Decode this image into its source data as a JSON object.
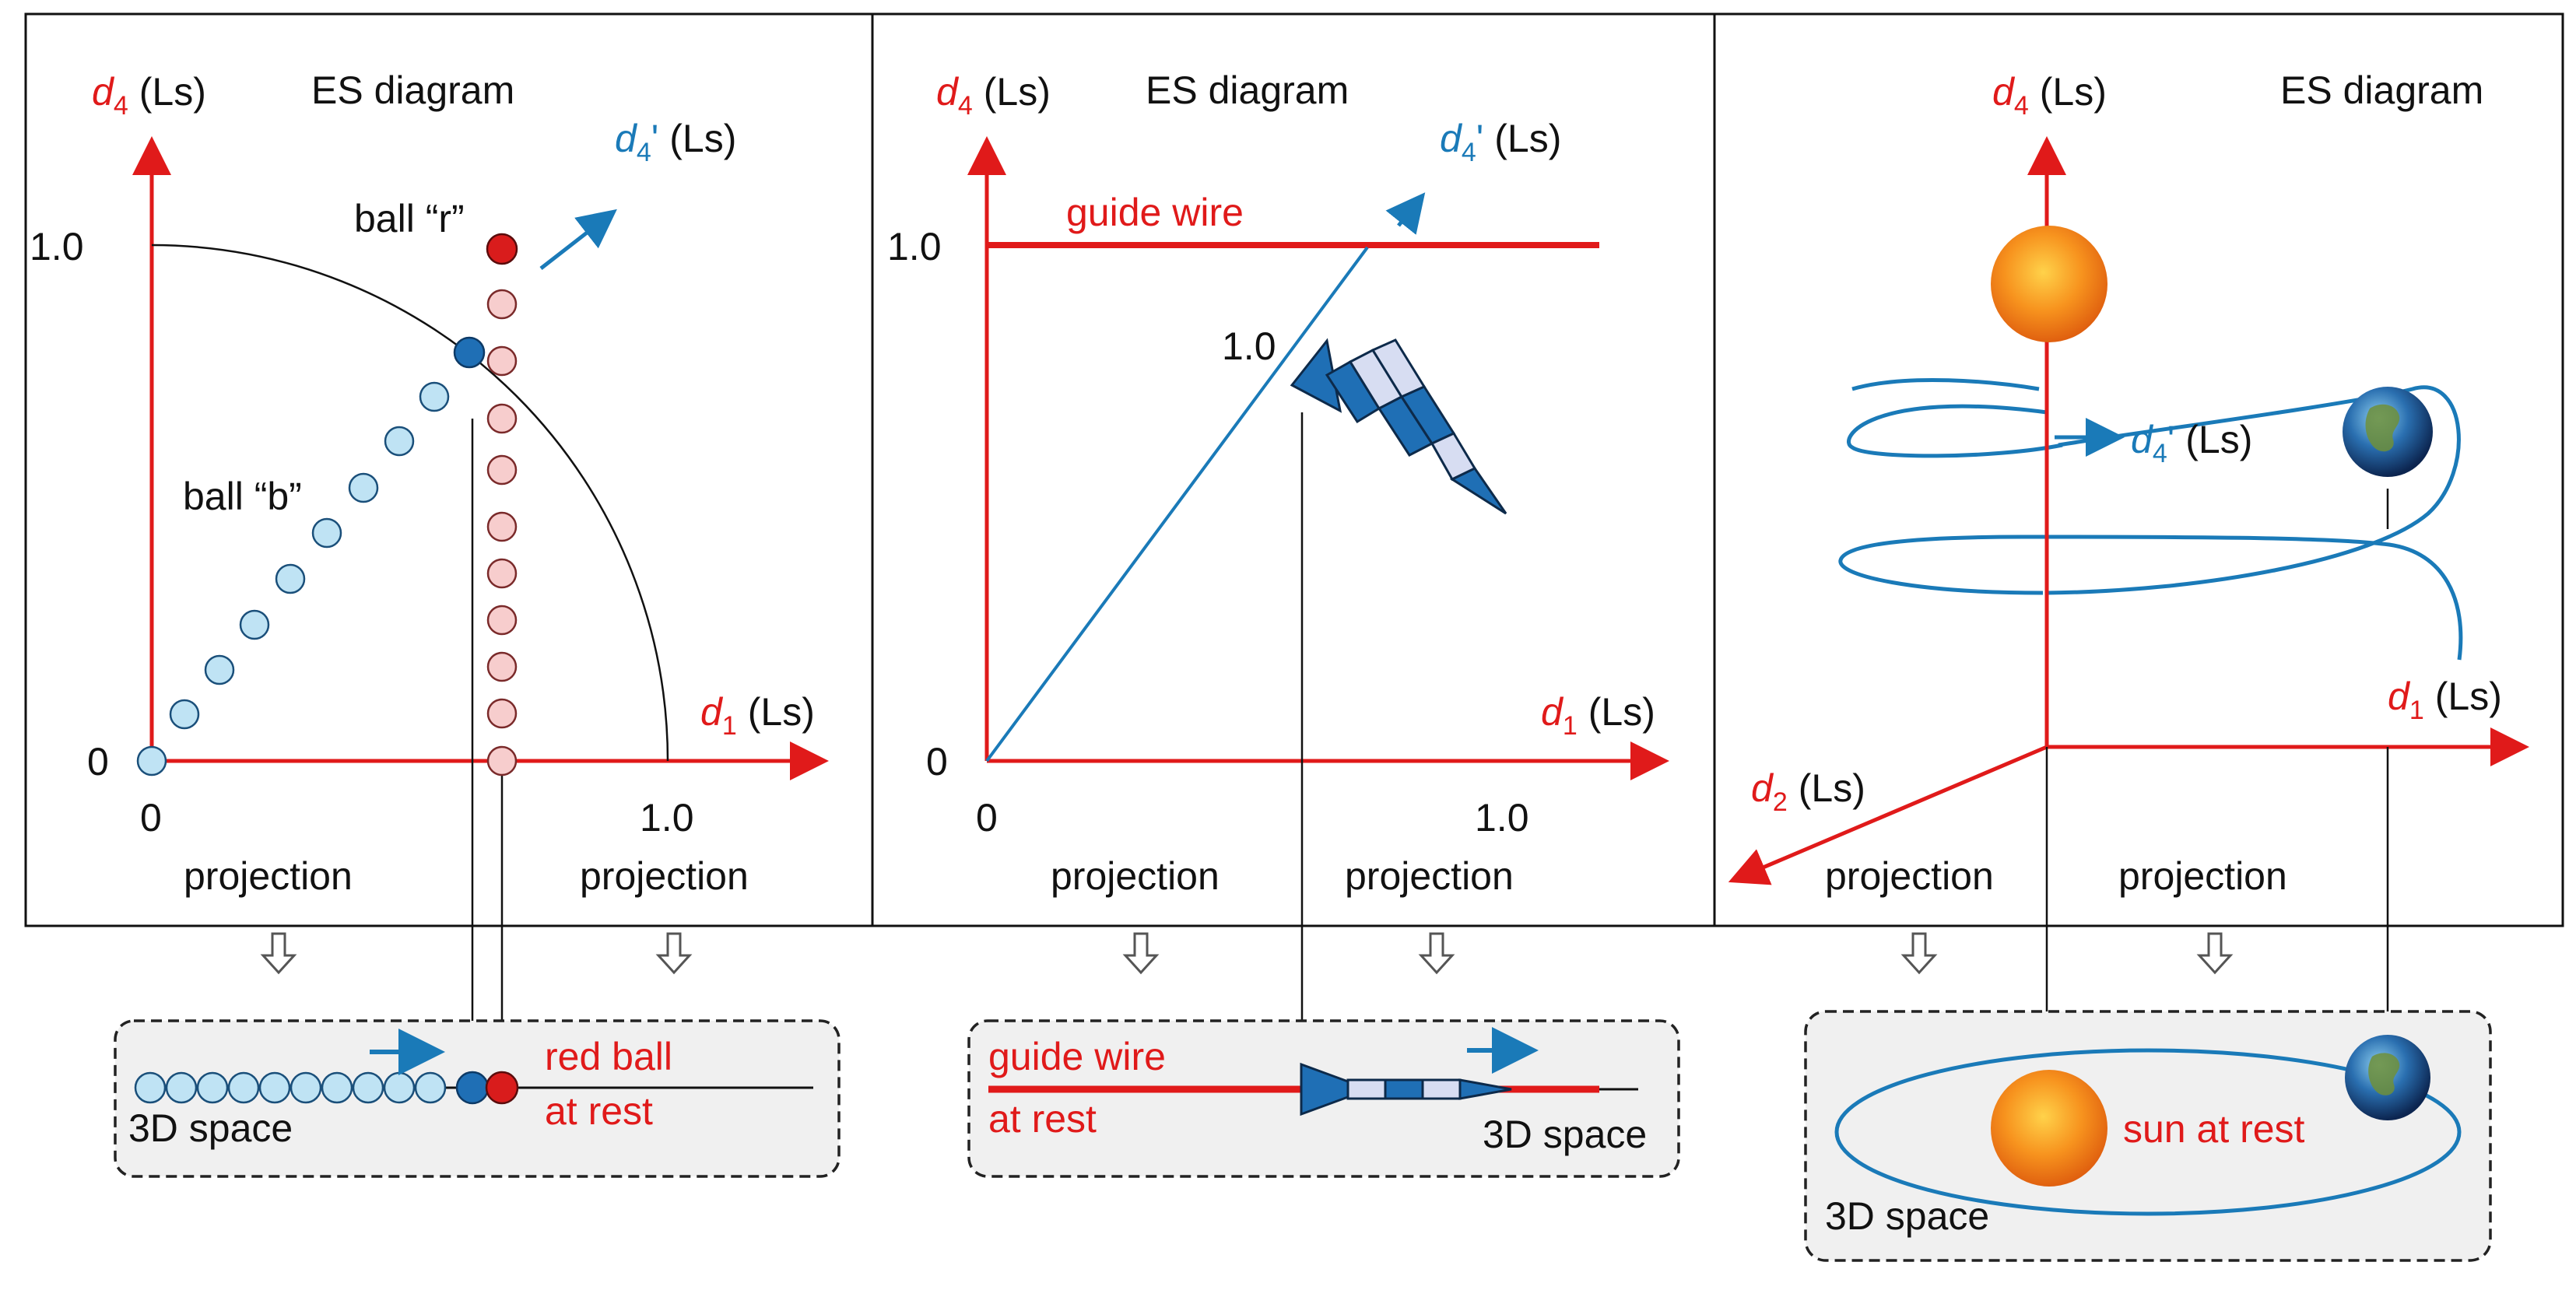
{
  "colors": {
    "axis_red": "#e01a1a",
    "path_blue": "#1a7ab8",
    "ball_light_blue": "#bfe3f4",
    "ball_blue": "#1f6fb5",
    "ball_pink": "#f7cdcd",
    "ball_red": "#d91c1c",
    "box_fill": "#f0f0f0"
  },
  "panels": [
    {
      "title": "ES diagram",
      "axis_y_var": "d",
      "axis_y_sub": "4",
      "axis_x_var": "d",
      "axis_x_sub": "1",
      "unit": "(Ls)",
      "prime_var": "d",
      "prime_sub": "4",
      "prime_mark": "'",
      "tick_y": "1.0",
      "tick_origin_y": "0",
      "tick_origin_x": "0",
      "tick_x": "1.0",
      "ball_r_label": "ball “r”",
      "ball_b_label": "ball “b”",
      "projection_left": "projection",
      "projection_right": "projection",
      "box_red_line1": "red ball",
      "box_red_line2": "at rest",
      "box_space_label": "3D space"
    },
    {
      "title": "ES diagram",
      "axis_y_var": "d",
      "axis_y_sub": "4",
      "axis_x_var": "d",
      "axis_x_sub": "1",
      "unit": "(Ls)",
      "prime_var": "d",
      "prime_sub": "4",
      "prime_mark": "'",
      "tick_y": "1.0",
      "tick_origin_y": "0",
      "tick_origin_x": "0",
      "tick_x": "1.0",
      "guide_wire_label": "guide wire",
      "rocket_tick": "1.0",
      "projection_left": "projection",
      "projection_right": "projection",
      "box_wire_line1": "guide wire",
      "box_wire_line2": "at rest",
      "box_space_label": "3D space"
    },
    {
      "title": "ES diagram",
      "axis_y_var": "d",
      "axis_y_sub": "4",
      "axis_x_var": "d",
      "axis_x_sub": "1",
      "axis_z_var": "d",
      "axis_z_sub": "2",
      "unit": "(Ls)",
      "prime_var": "d",
      "prime_sub": "4",
      "prime_mark": "'",
      "projection_left": "projection",
      "projection_right": "projection",
      "box_sun_label": "sun at rest",
      "box_space_label": "3D space"
    }
  ]
}
